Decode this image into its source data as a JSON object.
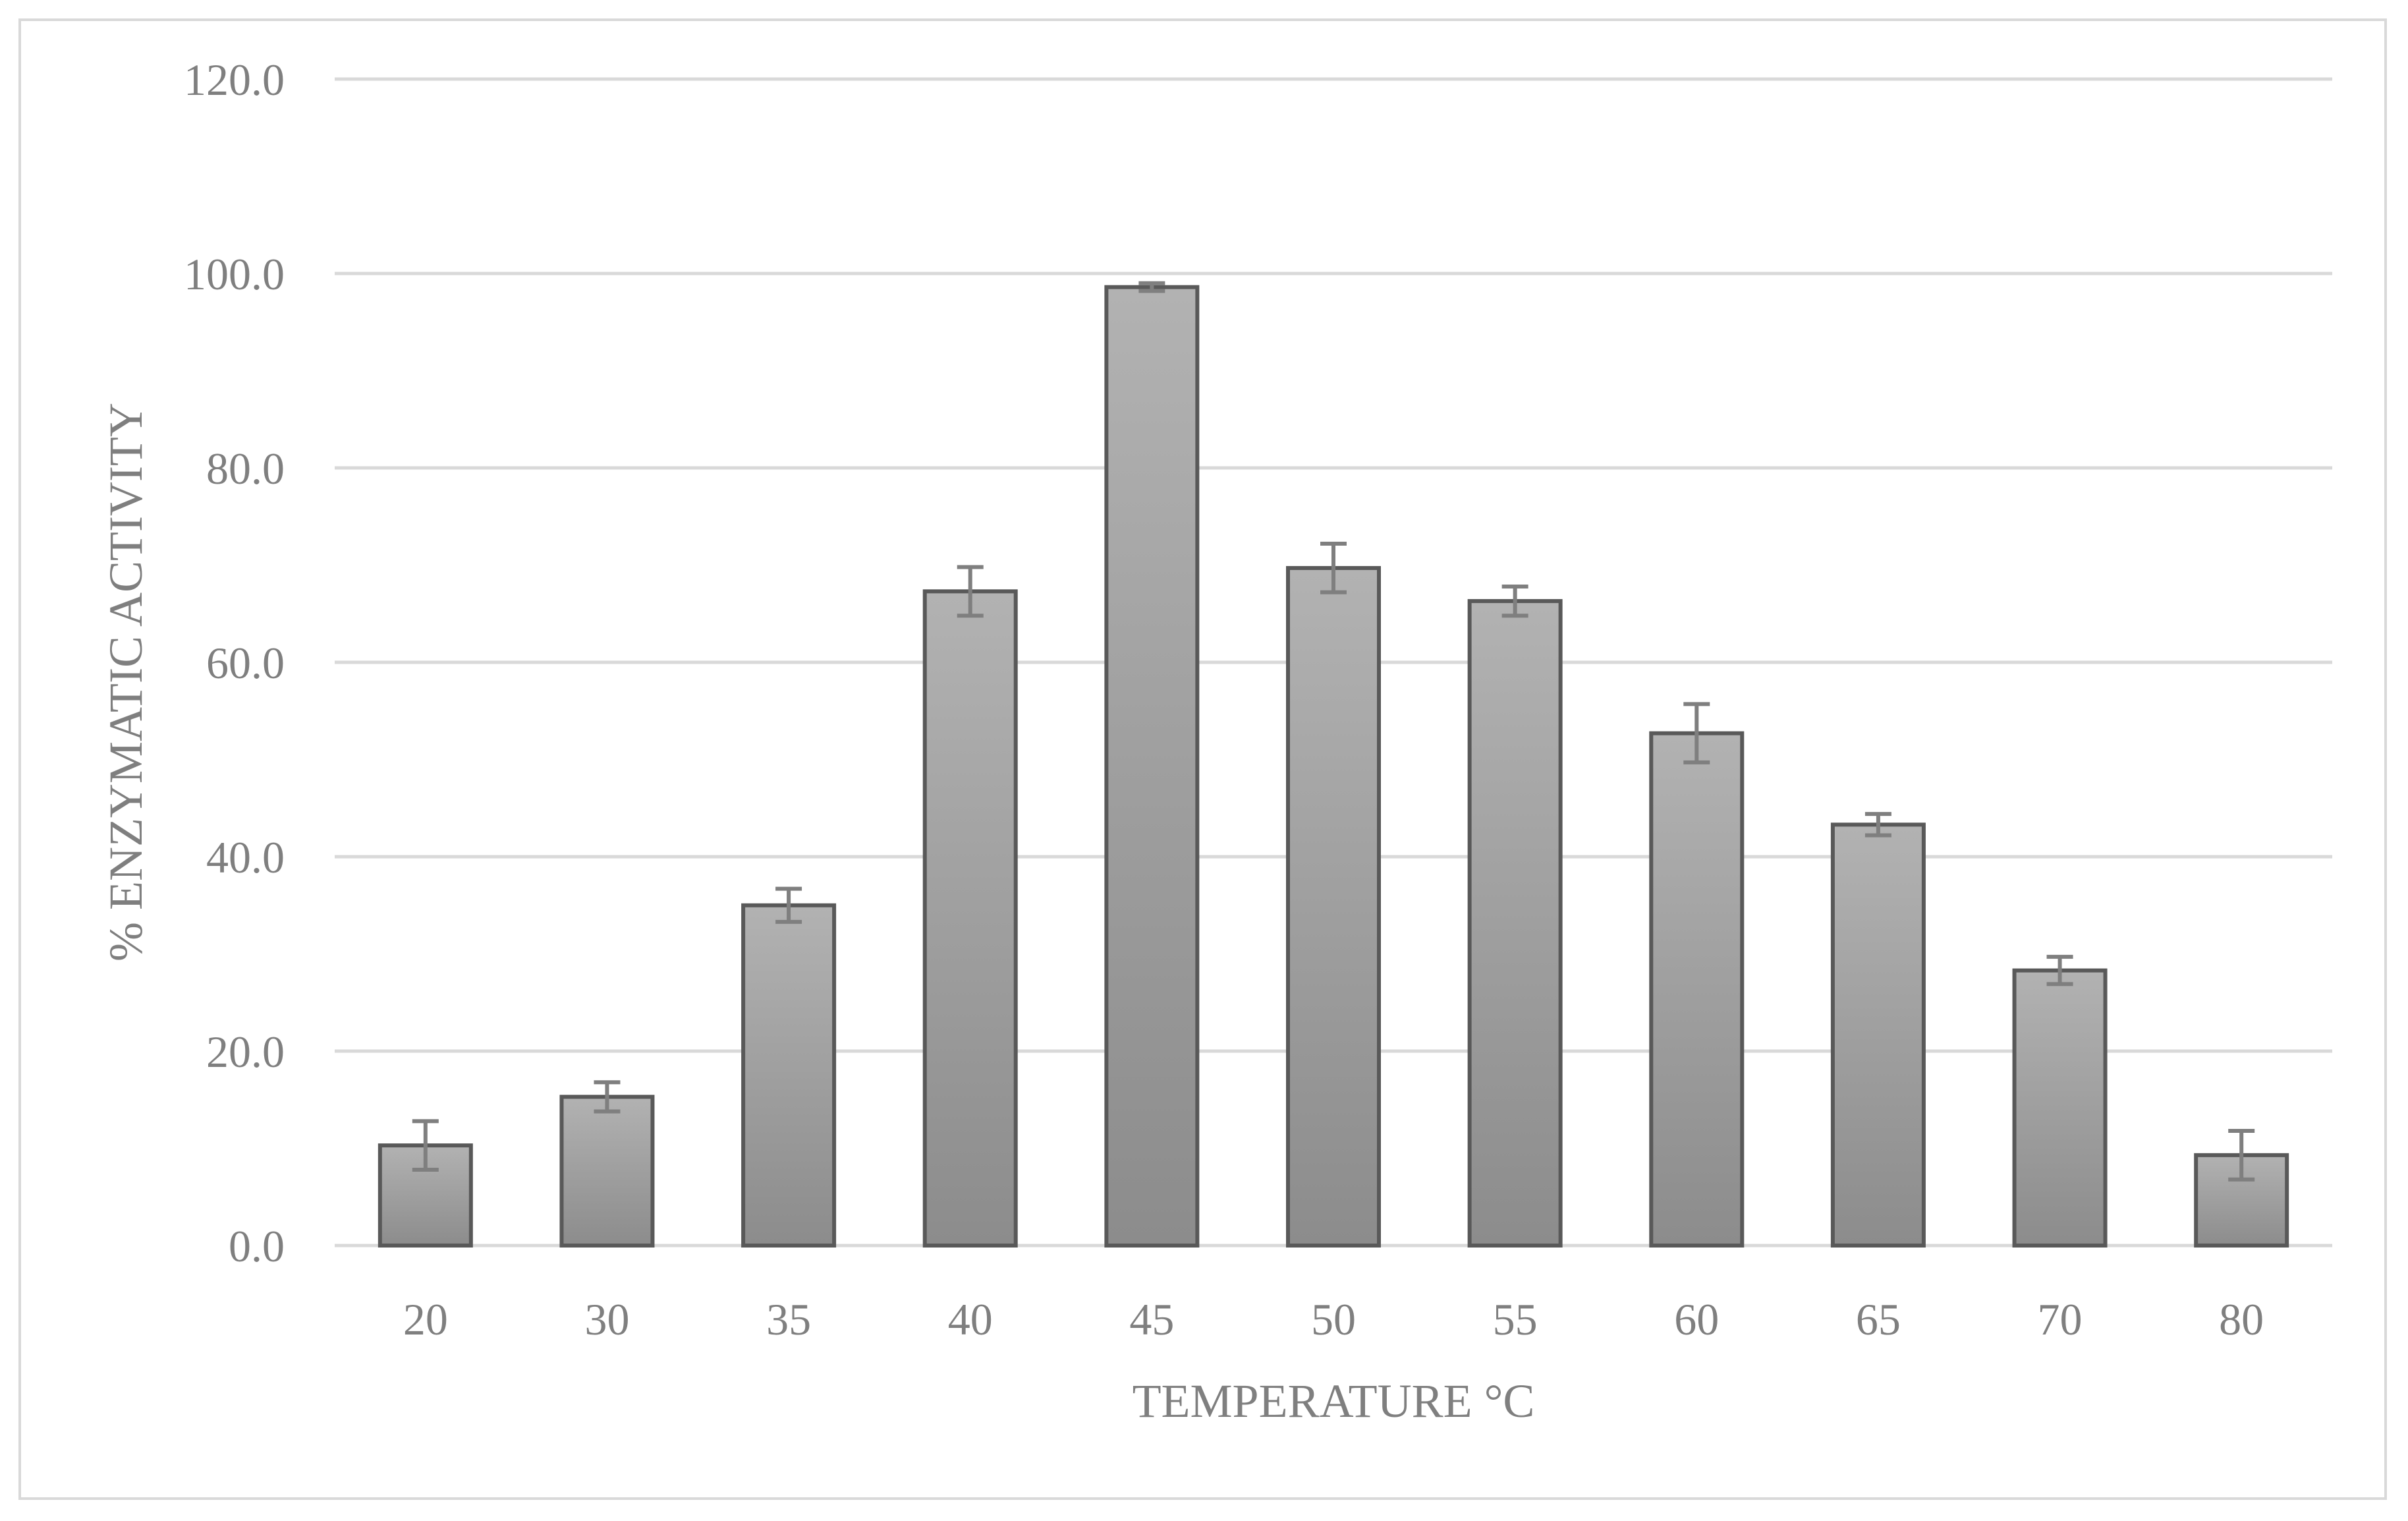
{
  "chart_data": {
    "type": "bar",
    "categories": [
      "20",
      "30",
      "35",
      "40",
      "45",
      "50",
      "55",
      "60",
      "65",
      "70",
      "80"
    ],
    "values": [
      10.3,
      15.3,
      35.0,
      67.3,
      98.6,
      69.7,
      66.3,
      52.7,
      43.3,
      28.3,
      9.3
    ],
    "errors": [
      2.5,
      1.5,
      1.7,
      2.5,
      0.4,
      2.5,
      1.5,
      3.0,
      1.1,
      1.4,
      2.5
    ],
    "title": "",
    "xlabel": "TEMPERATURE °C",
    "ylabel": "% ENZYMATIC ACTIVITY",
    "ylim": [
      0,
      120
    ],
    "yticks": [
      "0.0",
      "20.0",
      "40.0",
      "60.0",
      "80.0",
      "100.0",
      "120.0"
    ],
    "grid": true,
    "legend": "none",
    "colors": {
      "bar_top": "#b2b2b2",
      "bar_bottom": "#8c8c8c",
      "bar_outline": "#595959",
      "error_bar": "#7f7f7f",
      "gridline": "#d9d9d9",
      "text": "#7f7f7f"
    }
  }
}
